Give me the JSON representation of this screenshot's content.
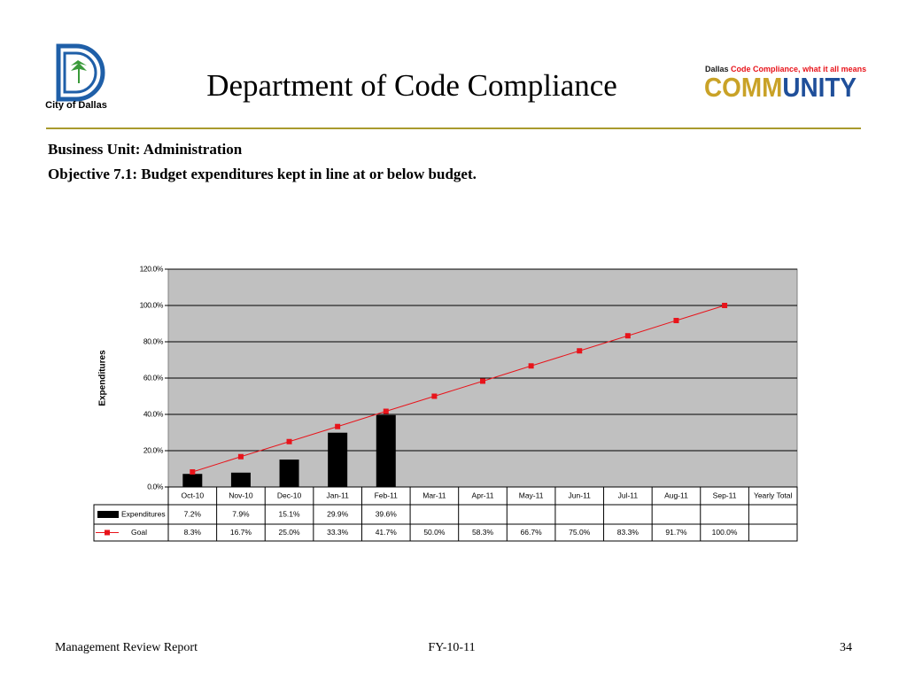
{
  "header": {
    "logo_caption": "City of Dallas",
    "title": "Department of Code Compliance",
    "tagline_parts": [
      "Dallas",
      "Code Compliance,",
      "what it all means"
    ],
    "logo_word_parts": [
      "COMM",
      "UNITY"
    ]
  },
  "subheading": {
    "business_unit": "Business Unit: Administration",
    "objective": "Objective 7.1:  Budget expenditures kept in line at or below budget."
  },
  "chart_data": {
    "type": "bar",
    "y_axis_label": "Expenditures",
    "categories": [
      "Oct-10",
      "Nov-10",
      "Dec-10",
      "Jan-11",
      "Feb-11",
      "Mar-11",
      "Apr-11",
      "May-11",
      "Jun-11",
      "Jul-11",
      "Aug-11",
      "Sep-11",
      "Yearly  Total"
    ],
    "series": [
      {
        "name": "Expenditures",
        "type": "bar",
        "color": "#000000",
        "values": [
          7.2,
          7.9,
          15.1,
          29.9,
          39.6,
          null,
          null,
          null,
          null,
          null,
          null,
          null,
          null
        ],
        "value_labels": [
          "7.2%",
          "7.9%",
          "15.1%",
          "29.9%",
          "39.6%",
          null,
          null,
          null,
          null,
          null,
          null,
          null,
          null
        ]
      },
      {
        "name": "Goal",
        "type": "line",
        "color": "#e8141b",
        "values": [
          8.3,
          16.7,
          25.0,
          33.3,
          41.7,
          50.0,
          58.3,
          66.7,
          75.0,
          83.3,
          91.7,
          100.0,
          null
        ],
        "value_labels": [
          "8.3%",
          "16.7%",
          "25.0%",
          "33.3%",
          "41.7%",
          "50.0%",
          "58.3%",
          "66.7%",
          "75.0%",
          "83.3%",
          "91.7%",
          "100.0%",
          null
        ]
      }
    ],
    "ylim": [
      0,
      120
    ],
    "yticks": [
      {
        "value": 0,
        "label": "0.0%"
      },
      {
        "value": 20,
        "label": "20.0%"
      },
      {
        "value": 40,
        "label": "40.0%"
      },
      {
        "value": 60,
        "label": "60.0%"
      },
      {
        "value": 80,
        "label": "80.0%"
      },
      {
        "value": 100,
        "label": "100.0%"
      },
      {
        "value": 120,
        "label": "120.0%"
      }
    ],
    "grid": true,
    "plot_background": "#c0c0c0"
  },
  "footer": {
    "left": "Management Review Report",
    "center": "FY-10-11",
    "page": "34"
  }
}
